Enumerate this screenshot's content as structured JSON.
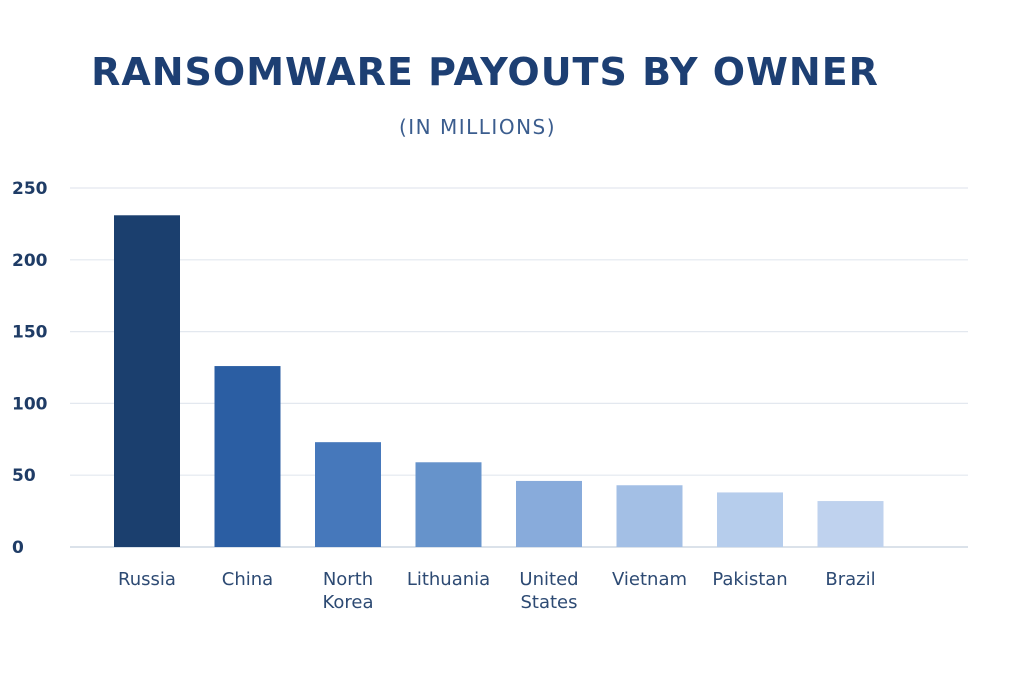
{
  "chart_data": {
    "type": "bar",
    "title": "RANSOMWARE PAYOUTS BY OWNER",
    "subtitle": "(IN MILLIONS)",
    "categories": [
      "Russia",
      "China",
      "North Korea",
      "Lithuania",
      "United States",
      "Vietnam",
      "Pakistan",
      "Brazil"
    ],
    "category_lines": [
      [
        "Russia"
      ],
      [
        "China"
      ],
      [
        "North",
        "Korea"
      ],
      [
        "Lithuania"
      ],
      [
        "United",
        "States"
      ],
      [
        "Vietnam"
      ],
      [
        "Pakistan"
      ],
      [
        "Brazil"
      ]
    ],
    "values": [
      231,
      126,
      73,
      59,
      46,
      43,
      38,
      32
    ],
    "bar_colors": [
      "#1b3f6e",
      "#2b5ea3",
      "#4678bb",
      "#6693cb",
      "#88abdb",
      "#a3bfe5",
      "#b6cdec",
      "#bfd2ee"
    ],
    "ylim": [
      0,
      250
    ],
    "yticks": [
      0,
      50,
      100,
      150,
      200,
      250
    ],
    "xlabel": "",
    "ylabel": "",
    "grid": true,
    "legend": "none"
  }
}
